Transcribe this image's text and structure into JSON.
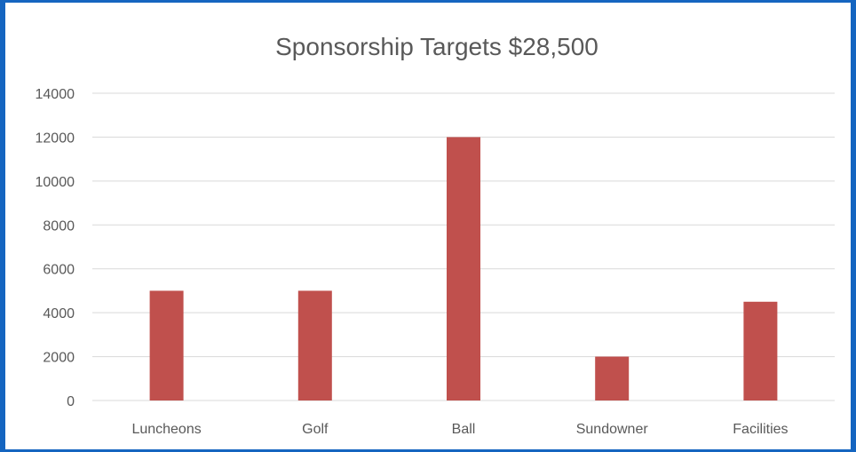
{
  "chart_data": {
    "type": "bar",
    "title": "Sponsorship Targets $28,500",
    "xlabel": "",
    "ylabel": "",
    "categories": [
      "Luncheons",
      "Golf",
      "Ball",
      "Sundowner",
      "Facilities"
    ],
    "values": [
      5000,
      5000,
      12000,
      2000,
      4500
    ],
    "ylim": [
      0,
      14000
    ],
    "yticks": [
      0,
      2000,
      4000,
      6000,
      8000,
      10000,
      12000,
      14000
    ],
    "grid": true,
    "legend": "none",
    "bar_color": "#c0504d",
    "frame_color": "#1565c0"
  }
}
